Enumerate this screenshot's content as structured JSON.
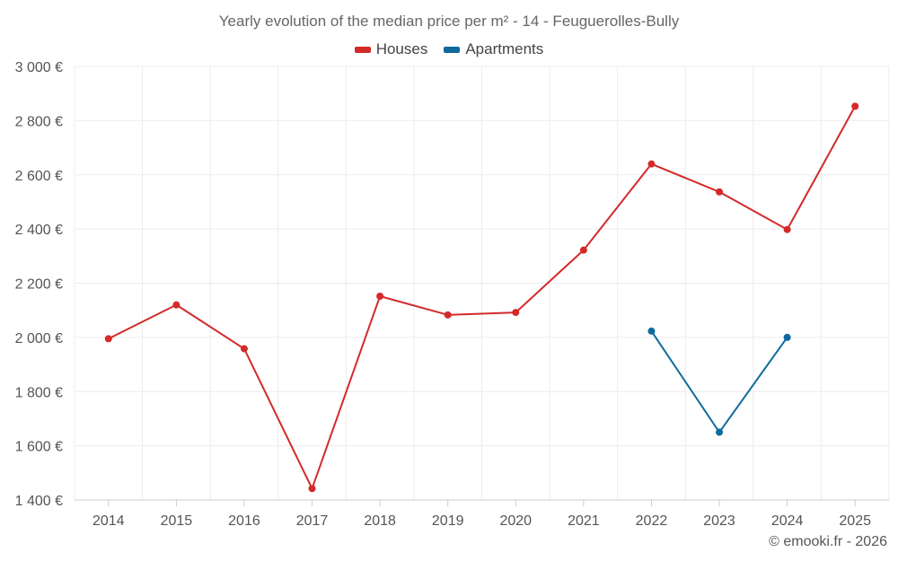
{
  "chart_data": {
    "type": "line",
    "title": "Yearly evolution of the median price per m² - 14 - Feuguerolles-Bully",
    "xlabel": "",
    "ylabel": "",
    "categories": [
      "2014",
      "2015",
      "2016",
      "2017",
      "2018",
      "2019",
      "2020",
      "2021",
      "2022",
      "2023",
      "2024",
      "2025"
    ],
    "ylim": [
      1400,
      3000
    ],
    "yticks": [
      1400,
      1600,
      1800,
      2000,
      2200,
      2400,
      2600,
      2800,
      3000
    ],
    "ytick_labels": [
      "1 400 €",
      "1 600 €",
      "1 800 €",
      "2 000 €",
      "2 200 €",
      "2 400 €",
      "2 600 €",
      "2 800 €",
      "3 000 €"
    ],
    "grid": true,
    "legend_position": "top-center",
    "series": [
      {
        "name": "Houses",
        "color": "#d42a2a",
        "values": [
          1995,
          2120,
          1958,
          1442,
          2152,
          2083,
          2092,
          2322,
          2640,
          2537,
          2398,
          2853
        ]
      },
      {
        "name": "Apartments",
        "color": "#0e6a9e",
        "values": [
          null,
          null,
          null,
          null,
          null,
          null,
          null,
          null,
          2023,
          1650,
          2000,
          null
        ]
      }
    ]
  },
  "credit": "© emooki.fr - 2026"
}
